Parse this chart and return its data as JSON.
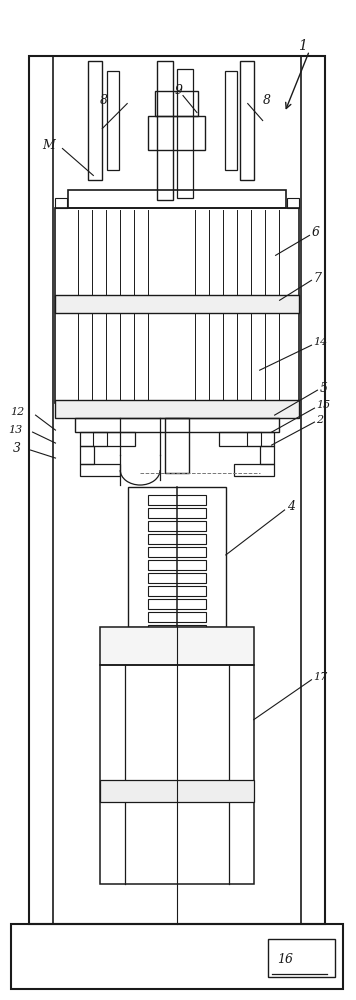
{
  "bg_color": "#ffffff",
  "line_color": "#1a1a1a",
  "fig_width": 3.56,
  "fig_height": 10.0,
  "dpi": 100,
  "annotation_color": "#1a1a1a"
}
